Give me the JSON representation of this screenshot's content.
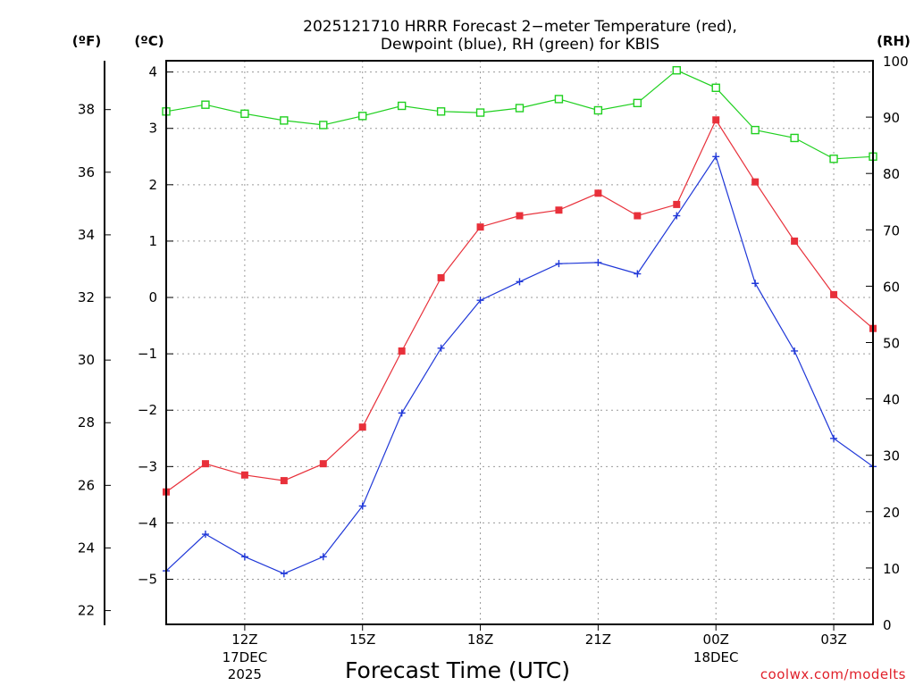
{
  "chart_data": {
    "type": "line",
    "title": [
      "2025121710 HRRR Forecast 2−meter Temperature (red),",
      "Dewpoint (blue), RH (green) for KBIS"
    ],
    "xlabel": "Forecast Time (UTC)",
    "unit_labels": {
      "fahrenheit": "(ºF)",
      "celsius": "(ºC)",
      "rh": "(RH)"
    },
    "x_hours": [
      10,
      11,
      12,
      13,
      14,
      15,
      16,
      17,
      18,
      19,
      20,
      21,
      22,
      23,
      24,
      25,
      26,
      27,
      28
    ],
    "x_range": [
      10,
      28
    ],
    "x_ticks": [
      {
        "hour": 12,
        "label": "12Z",
        "sub1": "17DEC",
        "sub2": "2025"
      },
      {
        "hour": 15,
        "label": "15Z",
        "sub1": "",
        "sub2": ""
      },
      {
        "hour": 18,
        "label": "18Z",
        "sub1": "",
        "sub2": ""
      },
      {
        "hour": 21,
        "label": "21Z",
        "sub1": "",
        "sub2": ""
      },
      {
        "hour": 24,
        "label": "00Z",
        "sub1": "18DEC",
        "sub2": ""
      },
      {
        "hour": 27,
        "label": "03Z",
        "sub1": "",
        "sub2": ""
      }
    ],
    "y_celsius": {
      "range": [
        -5.8,
        4.2
      ],
      "ticks": [
        4,
        3,
        2,
        1,
        0,
        -1,
        -2,
        -3,
        -4,
        -5
      ],
      "tick_labels": [
        "4",
        "3",
        "2",
        "1",
        "0",
        "−1",
        "−2",
        "−3",
        "−4",
        "−5"
      ]
    },
    "y_fahrenheit": {
      "ticks": [
        38,
        36,
        34,
        32,
        30,
        28,
        26,
        24,
        22
      ],
      "tick_labels": [
        "38",
        "36",
        "34",
        "32",
        "30",
        "28",
        "26",
        "24",
        "22"
      ]
    },
    "y_rh": {
      "range": [
        0,
        100
      ],
      "ticks": [
        100,
        90,
        80,
        70,
        60,
        50,
        40,
        30,
        20,
        10,
        0
      ],
      "tick_labels": [
        "100",
        "90",
        "80",
        "70",
        "60",
        "50",
        "40",
        "30",
        "20",
        "10",
        "0"
      ]
    },
    "series": [
      {
        "name": "Temperature",
        "axis": "celsius",
        "color": "#e8303a",
        "marker": "square-filled",
        "values": [
          -3.45,
          -2.95,
          -3.15,
          -3.25,
          -2.95,
          -2.3,
          -0.95,
          0.35,
          1.25,
          1.45,
          1.55,
          1.85,
          1.45,
          1.65,
          3.15,
          2.05,
          1.0,
          0.05,
          -0.55
        ]
      },
      {
        "name": "Dewpoint",
        "axis": "celsius",
        "color": "#2038d8",
        "marker": "plus",
        "values": [
          -4.85,
          -4.2,
          -4.6,
          -4.9,
          -4.6,
          -3.7,
          -2.05,
          -0.9,
          -0.05,
          0.28,
          0.6,
          0.62,
          0.42,
          1.45,
          2.5,
          0.25,
          -0.95,
          -2.5,
          -3.0
        ]
      },
      {
        "name": "RH",
        "axis": "rh",
        "color": "#20d020",
        "marker": "square-open",
        "values": [
          91.0,
          92.2,
          90.6,
          89.4,
          88.6,
          90.2,
          92.0,
          91.0,
          90.8,
          91.6,
          93.2,
          91.2,
          92.5,
          98.3,
          95.2,
          87.7,
          86.3,
          82.6,
          83.0
        ]
      }
    ]
  },
  "credit": "coolwx.com/modelts"
}
